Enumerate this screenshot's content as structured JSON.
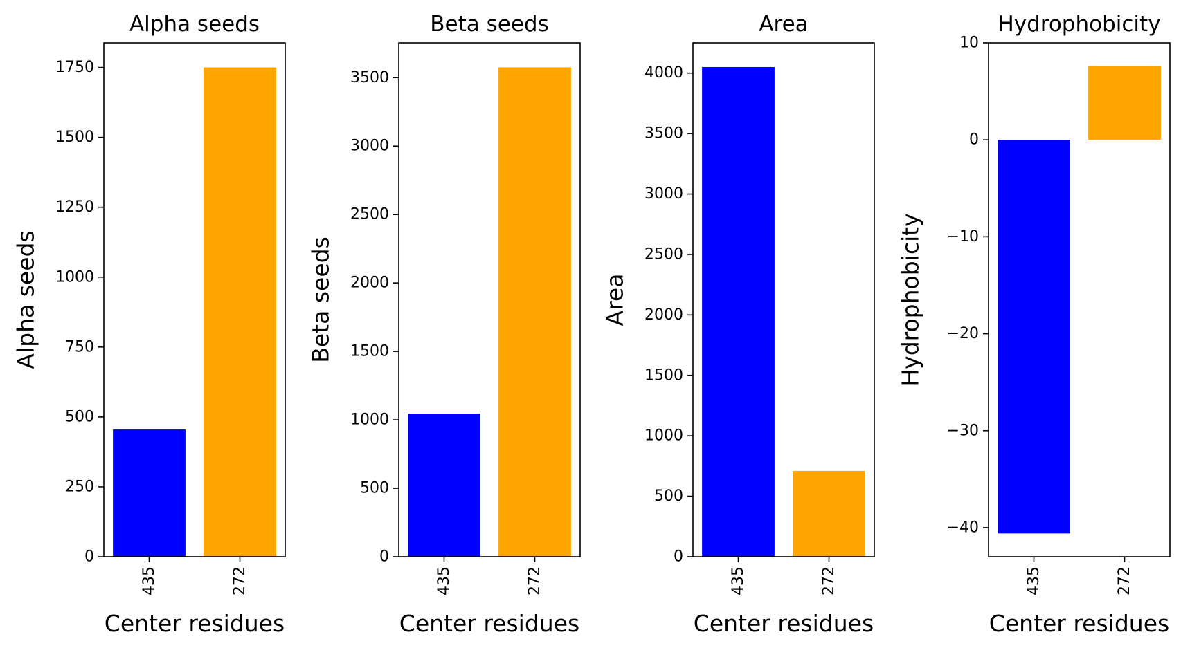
{
  "chart_data": [
    {
      "type": "bar",
      "title": "Alpha seeds",
      "xlabel": "Center residues",
      "ylabel": "Alpha seeds",
      "categories": [
        "435",
        "272"
      ],
      "values": [
        455,
        1750
      ],
      "colors": [
        "#0000ff",
        "#ffa500"
      ],
      "ylim": [
        0,
        1838
      ],
      "yticks": [
        0,
        250,
        500,
        750,
        1000,
        1250,
        1500,
        1750
      ],
      "grid": false
    },
    {
      "type": "bar",
      "title": "Beta seeds",
      "xlabel": "Center residues",
      "ylabel": "Beta seeds",
      "categories": [
        "435",
        "272"
      ],
      "values": [
        1045,
        3575
      ],
      "colors": [
        "#0000ff",
        "#ffa500"
      ],
      "ylim": [
        0,
        3754
      ],
      "yticks": [
        0,
        500,
        1000,
        1500,
        2000,
        2500,
        3000,
        3500
      ],
      "grid": false
    },
    {
      "type": "bar",
      "title": "Area",
      "xlabel": "Center residues",
      "ylabel": "Area",
      "categories": [
        "435",
        "272"
      ],
      "values": [
        4050,
        710
      ],
      "colors": [
        "#0000ff",
        "#ffa500"
      ],
      "ylim": [
        0,
        4250
      ],
      "yticks": [
        0,
        500,
        1000,
        1500,
        2000,
        2500,
        3000,
        3500,
        4000
      ],
      "grid": false
    },
    {
      "type": "bar",
      "title": "Hydrophobicity",
      "xlabel": "Center residues",
      "ylabel": "Hydrophobicity",
      "categories": [
        "435",
        "272"
      ],
      "values": [
        -40.6,
        7.6
      ],
      "colors": [
        "#0000ff",
        "#ffa500"
      ],
      "ylim": [
        -43,
        10
      ],
      "yticks": [
        -40,
        -30,
        -20,
        -10,
        0,
        10
      ],
      "grid": false
    }
  ]
}
